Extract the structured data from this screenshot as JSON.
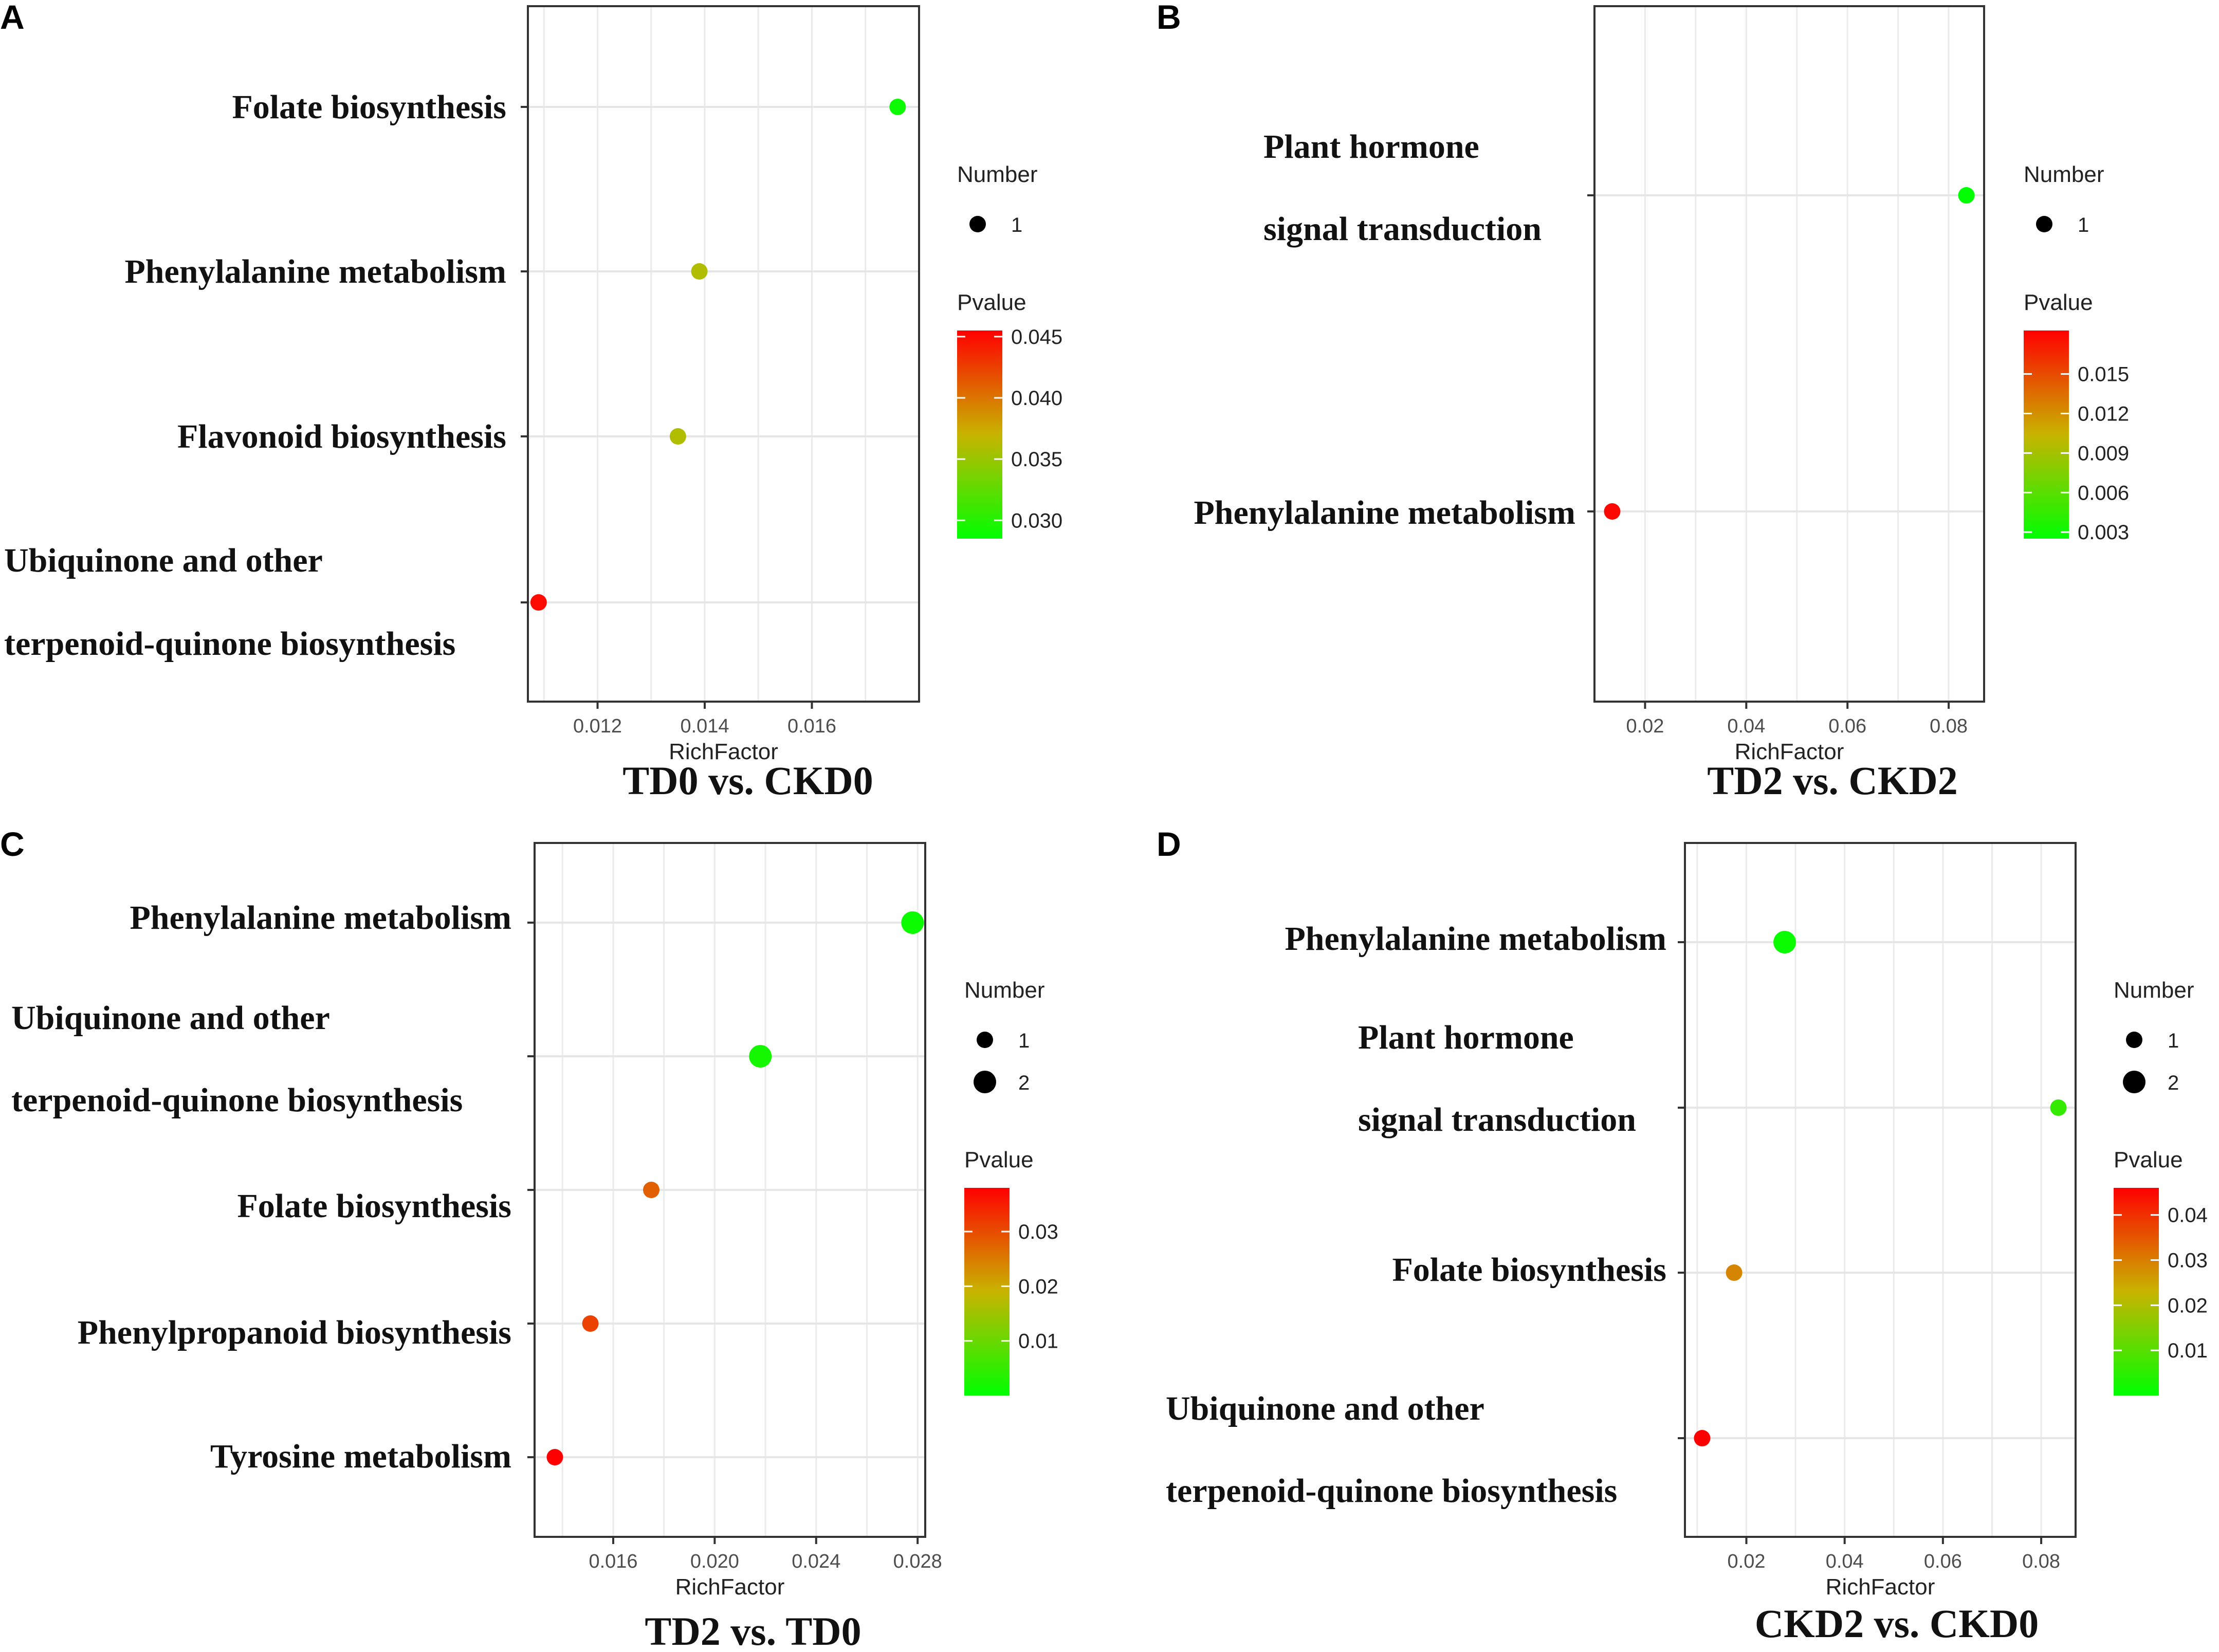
{
  "figure": {
    "panels": [
      {
        "letter": "A",
        "title": "TD0 vs. CKD0"
      },
      {
        "letter": "B",
        "title": "TD2 vs. CKD2"
      },
      {
        "letter": "C",
        "title": "TD2 vs. TD0"
      },
      {
        "letter": "D",
        "title": "CKD2 vs. CKD0"
      }
    ]
  },
  "chart_data": [
    {
      "type": "scatter",
      "panel": "A",
      "title": "TD0 vs. CKD0",
      "xlabel": "RichFactor",
      "ylabel": "",
      "xlim": [
        0.0107,
        0.018
      ],
      "xticks": [
        0.012,
        0.014,
        0.016
      ],
      "xtick_labels": [
        "0.012",
        "0.014",
        "0.016"
      ],
      "categories": [
        [
          "Folate biosynthesis"
        ],
        [
          "Phenylalanine metabolism"
        ],
        [
          "Flavonoid biosynthesis"
        ],
        [
          "Ubiquinone and other",
          "terpenoid-quinone biosynthesis"
        ]
      ],
      "points": [
        {
          "category": 0,
          "rich_factor": 0.0176,
          "number": 1,
          "pvalue": 0.029
        },
        {
          "category": 1,
          "rich_factor": 0.0139,
          "number": 1,
          "pvalue": 0.036
        },
        {
          "category": 2,
          "rich_factor": 0.0135,
          "number": 1,
          "pvalue": 0.036
        },
        {
          "category": 3,
          "rich_factor": 0.0109,
          "number": 1,
          "pvalue": 0.045
        }
      ],
      "legend_size": {
        "title": "Number",
        "values": [
          1
        ],
        "labels": [
          "1"
        ]
      },
      "legend_color": {
        "title": "Pvalue",
        "min": 0.0285,
        "max": 0.0455,
        "ticks": [
          0.045,
          0.04,
          0.035,
          0.03
        ],
        "labels": [
          "0.045",
          "0.040",
          "0.035",
          "0.030"
        ],
        "low_color": "#00ff00",
        "high_color": "#ff0000"
      }
    },
    {
      "type": "scatter",
      "panel": "B",
      "title": "TD2 vs. CKD2",
      "xlabel": "RichFactor",
      "ylabel": "",
      "xlim": [
        0.01,
        0.087
      ],
      "xticks": [
        0.02,
        0.04,
        0.06,
        0.08
      ],
      "xtick_labels": [
        "0.02",
        "0.04",
        "0.06",
        "0.08"
      ],
      "categories": [
        [
          "Plant hormone",
          "signal transduction"
        ],
        [
          "Phenylalanine metabolism"
        ]
      ],
      "points": [
        {
          "category": 0,
          "rich_factor": 0.0835,
          "number": 1,
          "pvalue": 0.0025
        },
        {
          "category": 1,
          "rich_factor": 0.0135,
          "number": 1,
          "pvalue": 0.018
        }
      ],
      "legend_size": {
        "title": "Number",
        "values": [
          1
        ],
        "labels": [
          "1"
        ]
      },
      "legend_color": {
        "title": "Pvalue",
        "min": 0.0025,
        "max": 0.0183,
        "ticks": [
          0.015,
          0.012,
          0.009,
          0.006,
          0.003
        ],
        "labels": [
          "0.015",
          "0.012",
          "0.009",
          "0.006",
          "0.003"
        ],
        "low_color": "#00ff00",
        "high_color": "#ff0000"
      }
    },
    {
      "type": "scatter",
      "panel": "C",
      "title": "TD2 vs. TD0",
      "xlabel": "RichFactor",
      "ylabel": "",
      "xlim": [
        0.0129,
        0.0283
      ],
      "xticks": [
        0.016,
        0.02,
        0.024,
        0.028
      ],
      "xtick_labels": [
        "0.016",
        "0.020",
        "0.024",
        "0.028"
      ],
      "categories": [
        [
          "Phenylalanine metabolism"
        ],
        [
          "Ubiquinone and other",
          "terpenoid-quinone biosynthesis"
        ],
        [
          "Folate biosynthesis"
        ],
        [
          "Phenylpropanoid biosynthesis"
        ],
        [
          "Tyrosine metabolism"
        ]
      ],
      "points": [
        {
          "category": 0,
          "rich_factor": 0.0278,
          "number": 2,
          "pvalue": 0.001
        },
        {
          "category": 1,
          "rich_factor": 0.0218,
          "number": 2,
          "pvalue": 0.002
        },
        {
          "category": 2,
          "rich_factor": 0.0175,
          "number": 1,
          "pvalue": 0.028
        },
        {
          "category": 3,
          "rich_factor": 0.0151,
          "number": 1,
          "pvalue": 0.031
        },
        {
          "category": 4,
          "rich_factor": 0.0137,
          "number": 1,
          "pvalue": 0.038
        }
      ],
      "legend_size": {
        "title": "Number",
        "values": [
          1,
          2
        ],
        "labels": [
          "1",
          "2"
        ]
      },
      "legend_color": {
        "title": "Pvalue",
        "min": 0.0,
        "max": 0.038,
        "ticks": [
          0.03,
          0.02,
          0.01
        ],
        "labels": [
          "0.03",
          "0.02",
          "0.01"
        ],
        "low_color": "#00ff00",
        "high_color": "#ff0000"
      }
    },
    {
      "type": "scatter",
      "panel": "D",
      "title": "CKD2 vs. CKD0",
      "xlabel": "RichFactor",
      "ylabel": "",
      "xlim": [
        0.0075,
        0.087
      ],
      "xticks": [
        0.02,
        0.04,
        0.06,
        0.08
      ],
      "xtick_labels": [
        "0.02",
        "0.04",
        "0.06",
        "0.08"
      ],
      "categories": [
        [
          "Phenylalanine metabolism"
        ],
        [
          "Plant hormone",
          "signal transduction"
        ],
        [
          "Folate biosynthesis"
        ],
        [
          "Ubiquinone and other",
          "terpenoid-quinone biosynthesis"
        ]
      ],
      "points": [
        {
          "category": 0,
          "rich_factor": 0.0278,
          "number": 2,
          "pvalue": 0.001
        },
        {
          "category": 1,
          "rich_factor": 0.0835,
          "number": 1,
          "pvalue": 0.006
        },
        {
          "category": 2,
          "rich_factor": 0.0175,
          "number": 1,
          "pvalue": 0.029
        },
        {
          "category": 3,
          "rich_factor": 0.011,
          "number": 1,
          "pvalue": 0.046
        }
      ],
      "legend_size": {
        "title": "Number",
        "values": [
          1,
          2
        ],
        "labels": [
          "1",
          "2"
        ]
      },
      "legend_color": {
        "title": "Pvalue",
        "min": 0.0,
        "max": 0.046,
        "ticks": [
          0.04,
          0.03,
          0.02,
          0.01
        ],
        "labels": [
          "0.04",
          "0.03",
          "0.02",
          "0.01"
        ],
        "low_color": "#00ff00",
        "high_color": "#ff0000"
      }
    }
  ]
}
